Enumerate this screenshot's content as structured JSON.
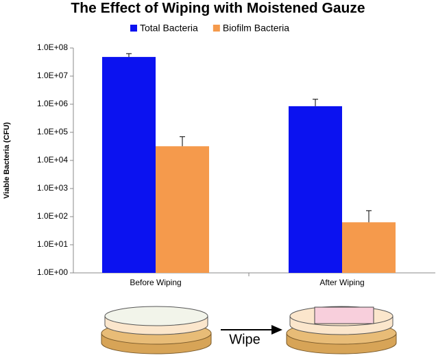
{
  "chart_data": {
    "type": "bar",
    "title": "The Effect of Wiping with Moistened Gauze",
    "y_label": "Viable Bacteria (CFU)",
    "categories": [
      "Before Wiping",
      "After Wiping"
    ],
    "series": [
      {
        "name": "Total Bacteria",
        "color": "#0b12f0",
        "values": [
          48000000,
          850000
        ],
        "errors": [
          15000000,
          650000
        ]
      },
      {
        "name": "Biofilm Bacteria",
        "color": "#f59a4c",
        "values": [
          32000,
          63
        ],
        "errors": [
          38000,
          100
        ]
      }
    ],
    "log_scale": true,
    "ylim": [
      1,
      100000000
    ],
    "yticks": [
      {
        "value": 1,
        "label": "1.0E+00"
      },
      {
        "value": 10,
        "label": "1.0E+01"
      },
      {
        "value": 100,
        "label": "1.0E+02"
      },
      {
        "value": 1000,
        "label": "1.0E+03"
      },
      {
        "value": 10000,
        "label": "1.0E+04"
      },
      {
        "value": 100000,
        "label": "1.0E+05"
      },
      {
        "value": 1000000,
        "label": "1.0E+06"
      },
      {
        "value": 10000000,
        "label": "1.0E+07"
      },
      {
        "value": 100000000,
        "label": "1.0E+08"
      }
    ],
    "grid": false,
    "legend": "top",
    "annotations": [
      "Wipe"
    ]
  }
}
